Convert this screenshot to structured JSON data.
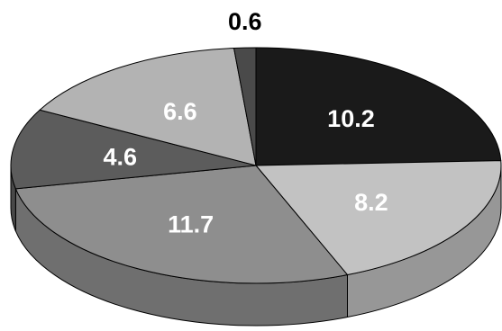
{
  "chart_data": {
    "type": "pie",
    "variant": "3d",
    "title": "",
    "legend": "none",
    "slices": [
      {
        "label": "10.2",
        "value": 10.2,
        "color": "#1a1a1a",
        "label_color": "#ffffff"
      },
      {
        "label": "8.2",
        "value": 8.2,
        "color": "#c2c2c2",
        "label_color": "#ffffff"
      },
      {
        "label": "11.7",
        "value": 11.7,
        "color": "#8e8e8e",
        "label_color": "#ffffff"
      },
      {
        "label": "4.6",
        "value": 4.6,
        "color": "#5c5c5c",
        "label_color": "#ffffff"
      },
      {
        "label": "6.6",
        "value": 6.6,
        "color": "#b3b3b3",
        "label_color": "#ffffff"
      },
      {
        "label": "0.6",
        "value": 0.6,
        "color": "#4a4a4a",
        "label_color": "#000000",
        "label_outside": true
      }
    ]
  }
}
